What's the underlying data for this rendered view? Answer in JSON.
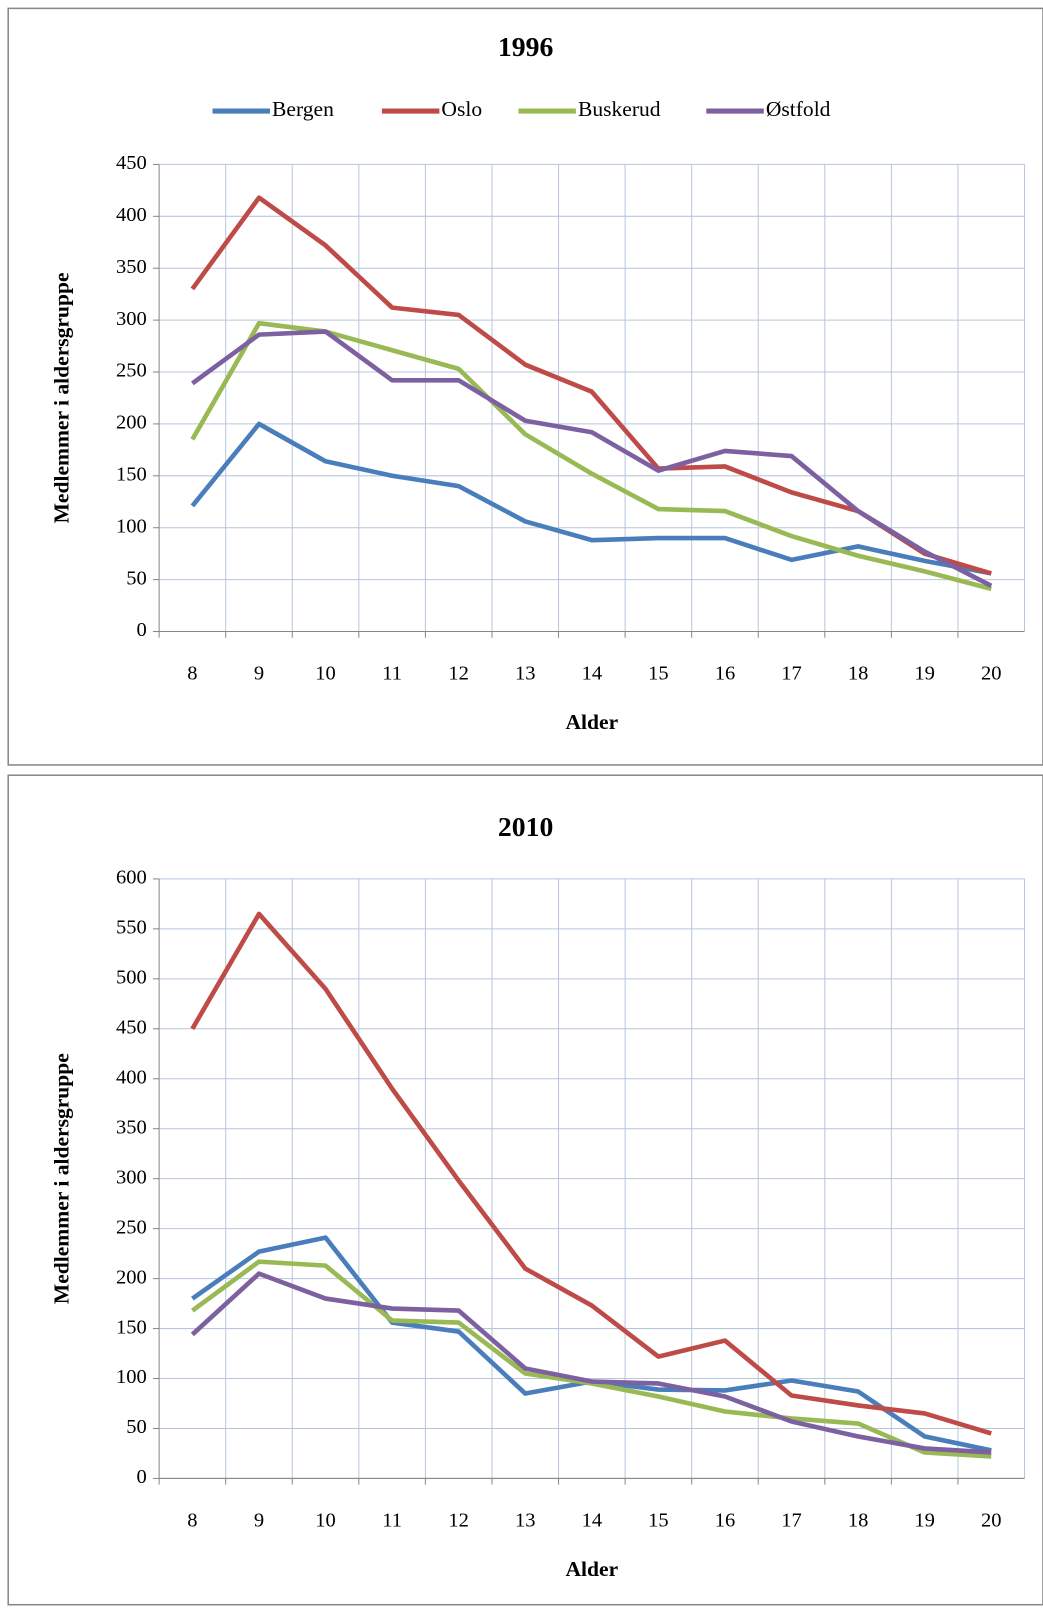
{
  "chart_data": [
    {
      "type": "line",
      "title": "1996",
      "x_label": "Alder",
      "y_label": "Medlemmer i aldersgruppe",
      "categories": [
        "8",
        "9",
        "10",
        "11",
        "12",
        "13",
        "14",
        "15",
        "16",
        "17",
        "18",
        "19",
        "20"
      ],
      "series": [
        {
          "name": "Bergen",
          "color": "#4a7ebb",
          "values": [
            121,
            200,
            164,
            150,
            140,
            106,
            88,
            90,
            90,
            69,
            82,
            68,
            56
          ]
        },
        {
          "name": "Oslo",
          "color": "#be4b48",
          "values": [
            330,
            418,
            372,
            312,
            305,
            257,
            231,
            157,
            159,
            134,
            116,
            75,
            56
          ]
        },
        {
          "name": "Buskerud",
          "color": "#98b954",
          "values": [
            185,
            297,
            289,
            271,
            253,
            190,
            152,
            118,
            116,
            92,
            73,
            58,
            41
          ]
        },
        {
          "name": "Østfold",
          "color": "#7d60a0",
          "values": [
            239,
            286,
            289,
            242,
            242,
            203,
            192,
            155,
            174,
            169,
            116,
            77,
            44
          ]
        }
      ],
      "ylim": [
        0,
        450
      ],
      "yticks": [
        0,
        50,
        100,
        150,
        200,
        250,
        300,
        350,
        400,
        450
      ],
      "grid": true,
      "legend": "top"
    },
    {
      "type": "line",
      "title": "2010",
      "x_label": "Alder",
      "y_label": "Medlemmer i aldersgruppe",
      "categories": [
        "8",
        "9",
        "10",
        "11",
        "12",
        "13",
        "14",
        "15",
        "16",
        "17",
        "18",
        "19",
        "20"
      ],
      "series": [
        {
          "color": "#4a7ebb",
          "values": [
            180,
            227,
            241,
            156,
            147,
            85,
            97,
            89,
            88,
            98,
            87,
            42,
            28
          ]
        },
        {
          "color": "#be4b48",
          "values": [
            450,
            565,
            490,
            390,
            298,
            210,
            173,
            122,
            138,
            83,
            73,
            65,
            45
          ]
        },
        {
          "color": "#98b954",
          "values": [
            168,
            217,
            213,
            158,
            156,
            105,
            95,
            82,
            67,
            60,
            55,
            26,
            22
          ]
        },
        {
          "color": "#7d60a0",
          "values": [
            144,
            205,
            180,
            170,
            168,
            110,
            97,
            95,
            82,
            57,
            42,
            30,
            26
          ]
        }
      ],
      "ylim": [
        0,
        600
      ],
      "yticks": [
        0,
        50,
        100,
        150,
        200,
        250,
        300,
        350,
        400,
        450,
        500,
        550,
        600
      ],
      "grid": true
    }
  ]
}
